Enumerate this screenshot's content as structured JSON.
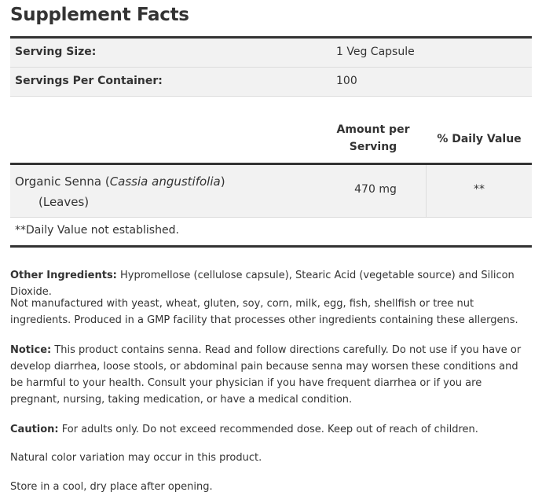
{
  "title": "Supplement Facts",
  "serving": [
    {
      "label": "Serving Size:",
      "value": "1 Veg Capsule"
    },
    {
      "label": "Servings Per Container:",
      "value": "100"
    }
  ],
  "columns": {
    "amount": "Amount per Serving",
    "dv": "% Daily Value"
  },
  "ingredient": {
    "name": "Organic Senna (",
    "latin": "Cassia angustifolia",
    "close": ")",
    "part": "(Leaves)",
    "amount": "470 mg",
    "dv": "**"
  },
  "footnote": "**Daily Value not established.",
  "paragraphs": [
    {
      "label": "Other Ingredients:",
      "text": " Hypromellose (cellulose capsule), Stearic Acid (vegetable source) and Silicon Dioxide."
    },
    {
      "label": "",
      "text": "Not manufactured with yeast, wheat, gluten, soy, corn, milk, egg, fish, shellfish or tree nut ingredients. Produced in a GMP facility that processes other ingredients containing these allergens."
    },
    {
      "label": "Notice:",
      "text": " This product contains senna. Read and follow directions carefully. Do not use if you have or develop diarrhea, loose stools, or abdominal pain because senna may worsen these conditions and be harmful to your health. Consult your physician if you have frequent diarrhea or if you are pregnant, nursing, taking medication, or have a medical condition."
    },
    {
      "label": "Caution:",
      "text": " For adults only. Do not exceed recommended dose. Keep out of reach of children."
    },
    {
      "label": "",
      "text": "Natural color variation may occur in this product."
    },
    {
      "label": "",
      "text": "Store in a cool, dry place after opening."
    }
  ]
}
